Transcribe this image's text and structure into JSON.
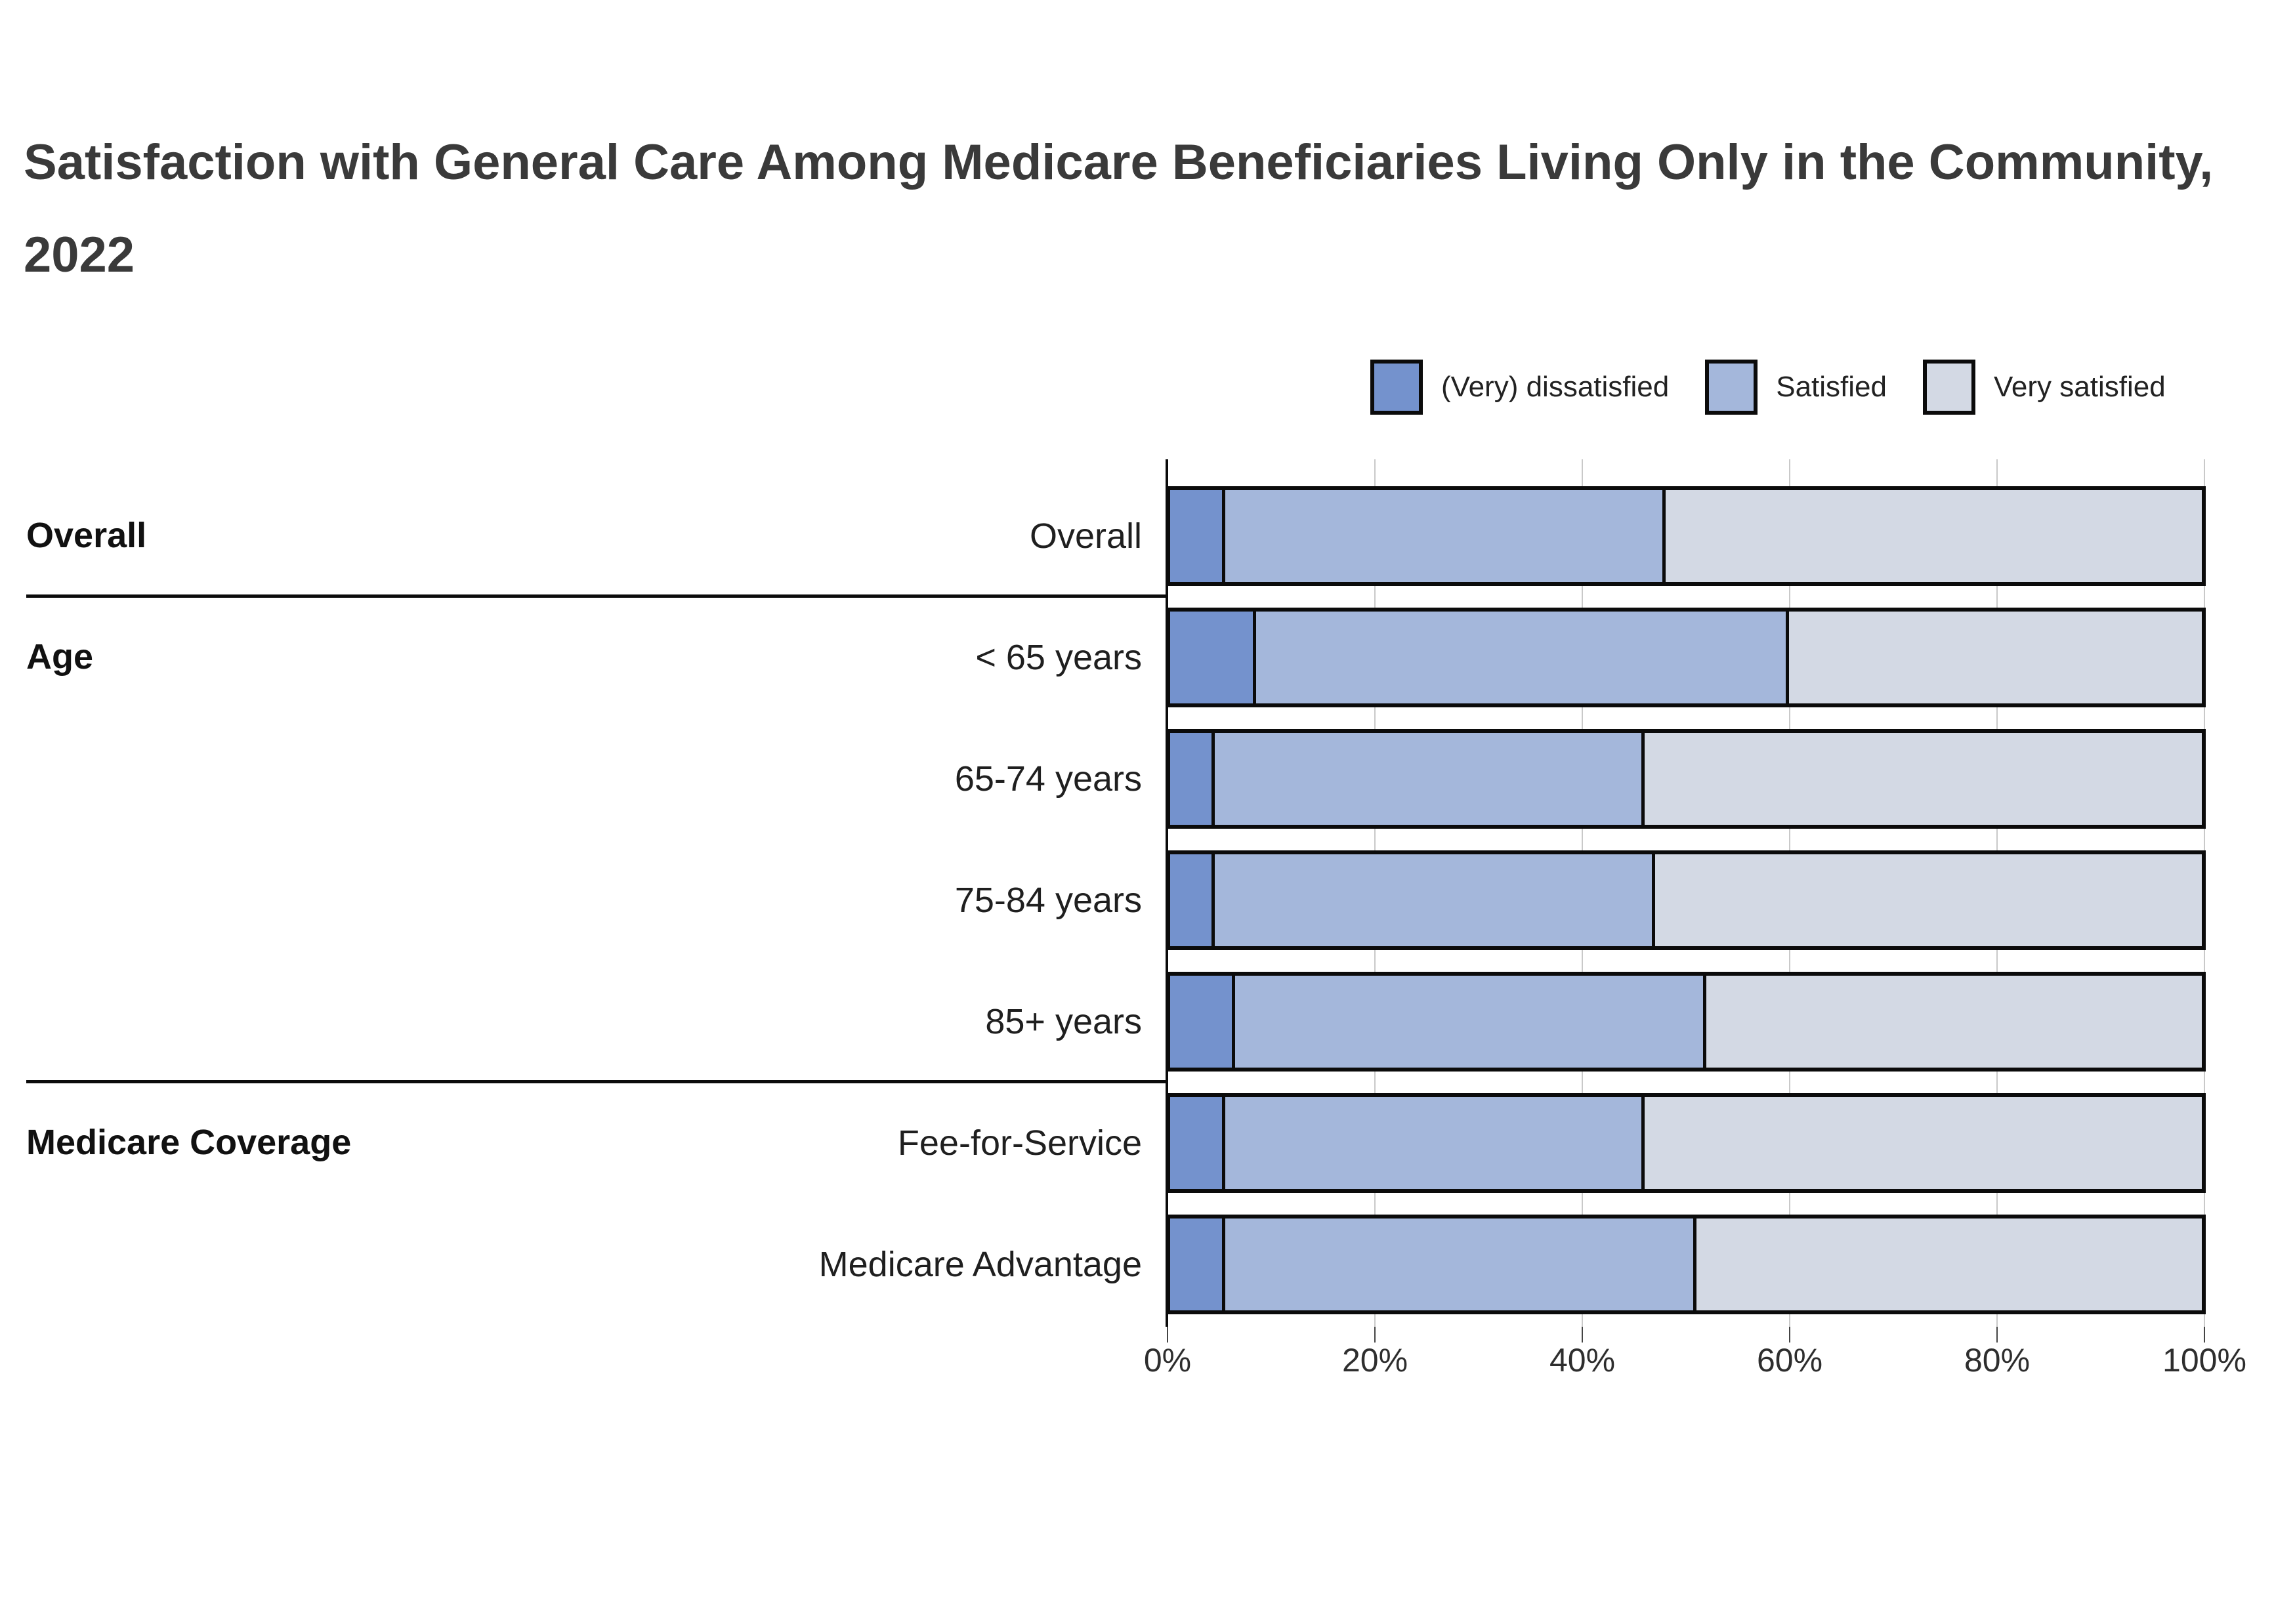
{
  "title": "Satisfaction with General Care Among Medicare Beneficiaries Living Only in the Community, 2022",
  "colors": {
    "dissatisfied": "#7492CD",
    "satisfied": "#A4B7DB",
    "very_satisfied": "#D3D9E4",
    "bar_border": "#0b0b0b",
    "gridline": "#c9c9c9",
    "title_text": "#3a3a3a"
  },
  "legend": {
    "items": [
      {
        "label": "(Very) dissatisfied",
        "color_key": "dissatisfied"
      },
      {
        "label": "Satisfied",
        "color_key": "satisfied"
      },
      {
        "label": "Very satisfied",
        "color_key": "very_satisfied"
      }
    ]
  },
  "axis": {
    "ticks": [
      "0%",
      "20%",
      "40%",
      "60%",
      "80%",
      "100%"
    ],
    "tick_values": [
      0,
      20,
      40,
      60,
      80,
      100
    ]
  },
  "chart_data": {
    "type": "bar",
    "stacked": true,
    "orientation": "horizontal",
    "title": "Satisfaction with General Care Among Medicare Beneficiaries Living Only in the Community, 2022",
    "xlim": [
      0,
      100
    ],
    "grid": true,
    "legend_position": "top-right",
    "series_order": [
      "(Very) dissatisfied",
      "Satisfied",
      "Very satisfied"
    ],
    "groups": [
      {
        "group": "Overall",
        "rows": [
          {
            "label": "Overall",
            "values": [
              5,
              43,
              52
            ]
          }
        ]
      },
      {
        "group": "Age",
        "rows": [
          {
            "label": "< 65 years",
            "values": [
              8,
              52,
              40
            ]
          },
          {
            "label": "65-74 years",
            "values": [
              4,
              42,
              54
            ]
          },
          {
            "label": "75-84 years",
            "values": [
              4,
              43,
              53
            ]
          },
          {
            "label": "85+ years",
            "values": [
              6,
              46,
              48
            ]
          }
        ]
      },
      {
        "group": "Medicare Coverage",
        "rows": [
          {
            "label": "Fee-for-Service",
            "values": [
              5,
              41,
              54
            ]
          },
          {
            "label": "Medicare Advantage",
            "values": [
              5,
              46,
              49
            ]
          }
        ]
      }
    ]
  }
}
